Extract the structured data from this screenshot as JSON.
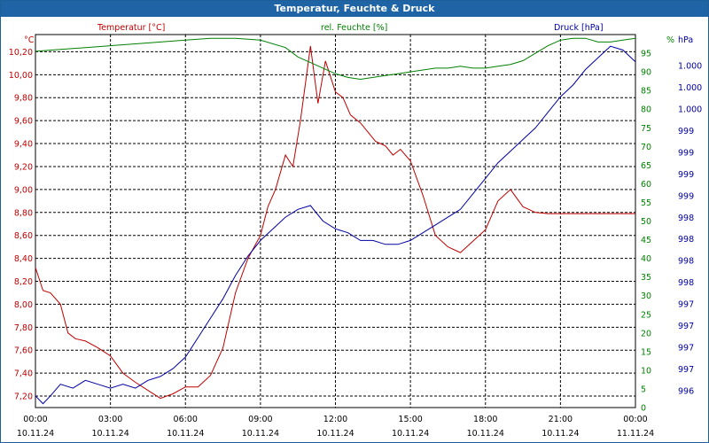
{
  "window": {
    "title": "Temperatur, Feuchte & Druck"
  },
  "colors": {
    "temperature": "#c00000",
    "humidity": "#008000",
    "pressure": "#0000a0",
    "grid": "#000000",
    "title_bg": "#1f65a6"
  },
  "chart_data": {
    "type": "line",
    "title": "Temperatur, Feuchte & Druck",
    "x_ticks": [
      {
        "time": "00:00",
        "date": "10.11.24"
      },
      {
        "time": "03:00",
        "date": "10.11.24"
      },
      {
        "time": "06:00",
        "date": "10.11.24"
      },
      {
        "time": "09:00",
        "date": "10.11.24"
      },
      {
        "time": "12:00",
        "date": "10.11.24"
      },
      {
        "time": "15:00",
        "date": "10.11.24"
      },
      {
        "time": "18:00",
        "date": "10.11.24"
      },
      {
        "time": "21:00",
        "date": "10.11.24"
      },
      {
        "time": "00:00",
        "date": "11.11.24"
      }
    ],
    "xlim_hours": [
      0,
      24
    ],
    "axes": {
      "temperature": {
        "label": "Temperatur [°C]",
        "unit": "°C",
        "ylim": [
          7.1,
          10.35
        ],
        "ticks": [
          "10,20",
          "10,00",
          "9,80",
          "9,60",
          "9,40",
          "9,20",
          "9,00",
          "8,80",
          "8,60",
          "8,40",
          "8,20",
          "8,00",
          "7,80",
          "7,60",
          "7,40",
          "7,20"
        ]
      },
      "humidity": {
        "label": "rel. Feuchte [%]",
        "unit": "%",
        "ylim": [
          0,
          100
        ],
        "ticks": [
          "95",
          "90",
          "85",
          "80",
          "75",
          "70",
          "65",
          "60",
          "55",
          "50",
          "45",
          "40",
          "35",
          "30",
          "25",
          "20",
          "15",
          "10",
          "5",
          "0"
        ]
      },
      "pressure": {
        "label": "Druck [hPa]",
        "unit": "hPa",
        "ylim": [
          995.8,
          1000.6
        ],
        "ticks": [
          "1.000",
          "1.000",
          "1.000",
          "999",
          "999",
          "999",
          "999",
          "998",
          "998",
          "998",
          "998",
          "997",
          "997",
          "997",
          "997",
          "996"
        ]
      }
    },
    "series": [
      {
        "name": "Temperatur",
        "axis": "temperature",
        "x": [
          0,
          0.3,
          0.6,
          1,
          1.3,
          1.6,
          2,
          2.5,
          3,
          3.5,
          4,
          4.5,
          5,
          5.5,
          6,
          6.5,
          7,
          7.5,
          8,
          8.5,
          9,
          9.3,
          9.6,
          10,
          10.3,
          10.6,
          11,
          11.3,
          11.6,
          12,
          12.3,
          12.6,
          13,
          13.3,
          13.6,
          14,
          14.3,
          14.6,
          15,
          15.5,
          16,
          16.5,
          17,
          17.5,
          18,
          18.5,
          19,
          19.5,
          20,
          20.5,
          21,
          21.5,
          22,
          22.5,
          23,
          23.5,
          24
        ],
        "values": [
          8.32,
          8.12,
          8.1,
          8.0,
          7.75,
          7.7,
          7.68,
          7.62,
          7.55,
          7.4,
          7.32,
          7.25,
          7.18,
          7.22,
          7.28,
          7.28,
          7.38,
          7.62,
          8.1,
          8.4,
          8.6,
          8.85,
          9.0,
          9.3,
          9.2,
          9.6,
          10.25,
          9.75,
          10.12,
          9.85,
          9.8,
          9.65,
          9.58,
          9.5,
          9.42,
          9.38,
          9.3,
          9.35,
          9.25,
          8.95,
          8.6,
          8.5,
          8.45,
          8.55,
          8.65,
          8.9,
          9.0,
          8.85,
          8.8,
          8.79,
          8.79,
          8.79,
          8.79,
          8.79,
          8.79,
          8.79,
          8.79
        ]
      },
      {
        "name": "rel. Feuchte",
        "axis": "humidity",
        "x": [
          0,
          1,
          2,
          3,
          4,
          5,
          6,
          7,
          8,
          9,
          10,
          10.5,
          11,
          11.5,
          12,
          12.5,
          13,
          13.5,
          14,
          14.5,
          15,
          15.5,
          16,
          16.5,
          17,
          17.5,
          18,
          18.5,
          19,
          19.5,
          20,
          20.5,
          21,
          21.5,
          22,
          22.5,
          23,
          23.5,
          24
        ],
        "values": [
          95.5,
          96,
          96.5,
          97,
          97.5,
          98,
          98.5,
          99,
          99,
          98.5,
          96.5,
          94,
          92.5,
          91,
          89.5,
          88.5,
          88,
          88.5,
          89,
          89.5,
          90,
          90.5,
          91,
          91,
          91.5,
          91,
          91,
          91.5,
          92,
          93,
          95,
          97,
          98.5,
          99,
          99,
          98,
          98,
          98.5,
          99
        ]
      },
      {
        "name": "Druck",
        "axis": "pressure",
        "x": [
          0,
          0.3,
          0.6,
          1,
          1.5,
          2,
          2.5,
          3,
          3.5,
          4,
          4.5,
          5,
          5.5,
          6,
          6.5,
          7,
          7.5,
          8,
          8.5,
          9,
          9.5,
          10,
          10.5,
          11,
          11.5,
          12,
          12.5,
          13,
          13.5,
          14,
          14.5,
          15,
          15.5,
          16,
          16.5,
          17,
          17.5,
          18,
          18.5,
          19,
          19.5,
          20,
          20.5,
          21,
          21.5,
          22,
          22.5,
          23,
          23.5,
          24
        ],
        "values": [
          995.95,
          995.85,
          995.95,
          996.1,
          996.05,
          996.15,
          996.1,
          996.05,
          996.1,
          996.05,
          996.15,
          996.2,
          996.3,
          996.45,
          996.7,
          996.95,
          997.2,
          997.5,
          997.75,
          997.95,
          998.1,
          998.25,
          998.35,
          998.4,
          998.2,
          998.1,
          998.05,
          997.95,
          997.95,
          997.9,
          997.9,
          997.95,
          998.05,
          998.15,
          998.25,
          998.35,
          998.55,
          998.75,
          998.95,
          999.1,
          999.25,
          999.4,
          999.6,
          999.8,
          999.95,
          1000.15,
          1000.3,
          1000.45,
          1000.4,
          1000.25
        ]
      }
    ]
  }
}
